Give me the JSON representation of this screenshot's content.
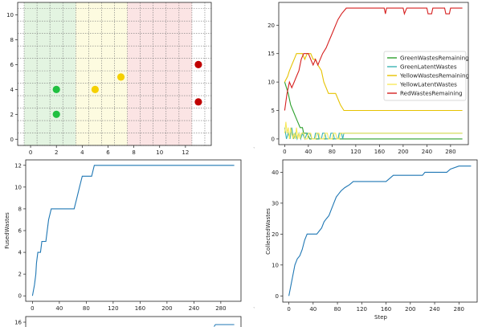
{
  "chart_data": [
    {
      "type": "scatter",
      "xlim": [
        -1,
        14
      ],
      "ylim": [
        -0.5,
        11
      ],
      "xticks": [
        "0",
        "2",
        "4",
        "6",
        "8",
        "10",
        "12"
      ],
      "yticks": [
        "0",
        "2",
        "4",
        "6",
        "8",
        "10"
      ],
      "grid": true,
      "zones": [
        {
          "x0": -0.5,
          "x1": 3.5,
          "color": "#e3f4e1"
        },
        {
          "x0": 3.5,
          "x1": 7.5,
          "color": "#fdfbe0"
        },
        {
          "x0": 7.5,
          "x1": 12.5,
          "color": "#fbe4e4"
        }
      ],
      "points": [
        {
          "x": 2,
          "y": 4,
          "color": "#20c040"
        },
        {
          "x": 2,
          "y": 2,
          "color": "#20c040"
        },
        {
          "x": 5,
          "y": 4,
          "color": "#f5d000"
        },
        {
          "x": 7,
          "y": 5,
          "color": "#f5d000"
        },
        {
          "x": 13,
          "y": 6,
          "color": "#c00000"
        },
        {
          "x": 13,
          "y": 3,
          "color": "#c00000"
        }
      ]
    },
    {
      "type": "line",
      "xlim": [
        -10,
        310
      ],
      "ylim": [
        -1,
        24
      ],
      "xticks": [
        "0",
        "40",
        "80",
        "120",
        "160",
        "200",
        "240",
        "280"
      ],
      "yticks": [
        "0",
        "5",
        "10",
        "15",
        "20"
      ],
      "legend": "center-right",
      "series": [
        {
          "name": "GreenWastesRemaining",
          "color": "#2ca02c",
          "points": [
            [
              0,
              10
            ],
            [
              3,
              9
            ],
            [
              6,
              8
            ],
            [
              10,
              6
            ],
            [
              14,
              5
            ],
            [
              18,
              4
            ],
            [
              22,
              3
            ],
            [
              26,
              2
            ],
            [
              30,
              2
            ],
            [
              32,
              1
            ],
            [
              38,
              1
            ],
            [
              42,
              0
            ],
            [
              300,
              0
            ]
          ]
        },
        {
          "name": "GreenLatentWastes",
          "color": "#3cb4b4",
          "points": [
            [
              0,
              2
            ],
            [
              3,
              0
            ],
            [
              6,
              1
            ],
            [
              9,
              0
            ],
            [
              12,
              2
            ],
            [
              15,
              0
            ],
            [
              18,
              1
            ],
            [
              21,
              0
            ],
            [
              24,
              1
            ],
            [
              27,
              0
            ],
            [
              30,
              1
            ],
            [
              34,
              0
            ],
            [
              38,
              1
            ],
            [
              42,
              1
            ],
            [
              46,
              0
            ],
            [
              50,
              0
            ],
            [
              52,
              1
            ],
            [
              56,
              1
            ],
            [
              58,
              0
            ],
            [
              62,
              0
            ],
            [
              64,
              1
            ],
            [
              68,
              1
            ],
            [
              70,
              0
            ],
            [
              76,
              0
            ],
            [
              78,
              1
            ],
            [
              82,
              1
            ],
            [
              84,
              0
            ],
            [
              90,
              0
            ],
            [
              92,
              1
            ],
            [
              96,
              1
            ],
            [
              98,
              0
            ],
            [
              100,
              1
            ],
            [
              300,
              1
            ]
          ]
        },
        {
          "name": "YellowWastesRemaining",
          "color": "#e6c200",
          "points": [
            [
              0,
              10
            ],
            [
              5,
              11
            ],
            [
              8,
              12
            ],
            [
              12,
              13
            ],
            [
              16,
              14
            ],
            [
              20,
              15
            ],
            [
              30,
              15
            ],
            [
              34,
              14
            ],
            [
              38,
              15
            ],
            [
              44,
              15
            ],
            [
              48,
              14
            ],
            [
              52,
              14
            ],
            [
              56,
              13
            ],
            [
              62,
              12
            ],
            [
              66,
              10
            ],
            [
              70,
              9
            ],
            [
              74,
              8
            ],
            [
              86,
              8
            ],
            [
              90,
              7
            ],
            [
              94,
              6
            ],
            [
              100,
              5
            ],
            [
              300,
              5
            ]
          ]
        },
        {
          "name": "YellowLatentWastes",
          "color": "#f7e85a",
          "points": [
            [
              0,
              1
            ],
            [
              2,
              3
            ],
            [
              4,
              1
            ],
            [
              6,
              2
            ],
            [
              8,
              0
            ],
            [
              10,
              2
            ],
            [
              12,
              1
            ],
            [
              14,
              0
            ],
            [
              16,
              1
            ],
            [
              18,
              0
            ],
            [
              20,
              2
            ],
            [
              22,
              0
            ],
            [
              24,
              1
            ],
            [
              26,
              0
            ],
            [
              28,
              1
            ],
            [
              32,
              1
            ],
            [
              34,
              0
            ],
            [
              38,
              0
            ],
            [
              40,
              1
            ],
            [
              44,
              1
            ],
            [
              46,
              0
            ],
            [
              52,
              0
            ],
            [
              54,
              1
            ],
            [
              58,
              1
            ],
            [
              60,
              0
            ],
            [
              66,
              0
            ],
            [
              68,
              1
            ],
            [
              72,
              1
            ],
            [
              74,
              0
            ],
            [
              80,
              0
            ],
            [
              82,
              1
            ],
            [
              86,
              1
            ],
            [
              88,
              0
            ],
            [
              92,
              0
            ],
            [
              94,
              1
            ],
            [
              300,
              1
            ]
          ]
        },
        {
          "name": "RedWastesRemaining",
          "color": "#d62020",
          "points": [
            [
              0,
              5
            ],
            [
              4,
              8
            ],
            [
              8,
              10
            ],
            [
              12,
              9
            ],
            [
              16,
              10
            ],
            [
              20,
              11
            ],
            [
              24,
              12
            ],
            [
              28,
              14
            ],
            [
              32,
              15
            ],
            [
              40,
              15
            ],
            [
              44,
              14
            ],
            [
              48,
              13
            ],
            [
              52,
              14
            ],
            [
              56,
              13
            ],
            [
              60,
              14
            ],
            [
              64,
              15
            ],
            [
              70,
              16
            ],
            [
              74,
              17
            ],
            [
              78,
              18
            ],
            [
              82,
              19
            ],
            [
              86,
              20
            ],
            [
              90,
              21
            ],
            [
              96,
              22
            ],
            [
              104,
              23
            ],
            [
              168,
              23
            ],
            [
              170,
              22
            ],
            [
              172,
              23
            ],
            [
              200,
              23
            ],
            [
              202,
              22
            ],
            [
              206,
              23
            ],
            [
              240,
              23
            ],
            [
              242,
              22
            ],
            [
              248,
              22
            ],
            [
              250,
              23
            ],
            [
              270,
              23
            ],
            [
              272,
              22
            ],
            [
              278,
              22
            ],
            [
              280,
              23
            ],
            [
              300,
              23
            ]
          ]
        }
      ]
    },
    {
      "type": "line",
      "ylabel": "FusedWastes",
      "xlim": [
        -10,
        310
      ],
      "ylim": [
        -0.5,
        12.5
      ],
      "xticks": [
        "0",
        "40",
        "80",
        "120",
        "160",
        "200",
        "240",
        "280"
      ],
      "yticks": [
        "0",
        "2",
        "4",
        "6",
        "8",
        "10",
        "12"
      ],
      "series": [
        {
          "color": "#1f77b4",
          "points": [
            [
              0,
              0
            ],
            [
              3,
              1
            ],
            [
              5,
              2
            ],
            [
              6,
              3
            ],
            [
              8,
              4
            ],
            [
              12,
              4
            ],
            [
              14,
              5
            ],
            [
              20,
              5
            ],
            [
              22,
              6
            ],
            [
              24,
              7
            ],
            [
              28,
              8
            ],
            [
              62,
              8
            ],
            [
              66,
              9
            ],
            [
              70,
              10
            ],
            [
              74,
              11
            ],
            [
              88,
              11
            ],
            [
              92,
              12
            ],
            [
              300,
              12
            ]
          ]
        }
      ]
    },
    {
      "type": "line",
      "xlabel": "Step",
      "ylabel": "CollectedWastes",
      "xlim": [
        -10,
        310
      ],
      "ylim": [
        -2,
        44
      ],
      "xticks": [
        "0",
        "40",
        "80",
        "120",
        "160",
        "200",
        "240",
        "280"
      ],
      "yticks": [
        "0",
        "10",
        "20",
        "30",
        "40"
      ],
      "series": [
        {
          "color": "#1f77b4",
          "points": [
            [
              0,
              0
            ],
            [
              4,
              4
            ],
            [
              6,
              6
            ],
            [
              10,
              10
            ],
            [
              14,
              12
            ],
            [
              18,
              13
            ],
            [
              22,
              15
            ],
            [
              26,
              18
            ],
            [
              30,
              20
            ],
            [
              46,
              20
            ],
            [
              50,
              21
            ],
            [
              54,
              22
            ],
            [
              58,
              24
            ],
            [
              62,
              25
            ],
            [
              66,
              26
            ],
            [
              70,
              28
            ],
            [
              74,
              30
            ],
            [
              78,
              32
            ],
            [
              82,
              33
            ],
            [
              86,
              34
            ],
            [
              92,
              35
            ],
            [
              100,
              36
            ],
            [
              106,
              37
            ],
            [
              160,
              37
            ],
            [
              166,
              38
            ],
            [
              172,
              39
            ],
            [
              220,
              39
            ],
            [
              224,
              40
            ],
            [
              260,
              40
            ],
            [
              266,
              41
            ],
            [
              280,
              42
            ],
            [
              300,
              42
            ]
          ]
        }
      ]
    },
    {
      "type": "line",
      "yticks": [
        "16"
      ],
      "series": [
        {
          "color": "#1f77b4",
          "points": [
            [
              270,
              15.5
            ],
            [
              272,
              16
            ],
            [
              300,
              16
            ]
          ]
        }
      ]
    }
  ]
}
